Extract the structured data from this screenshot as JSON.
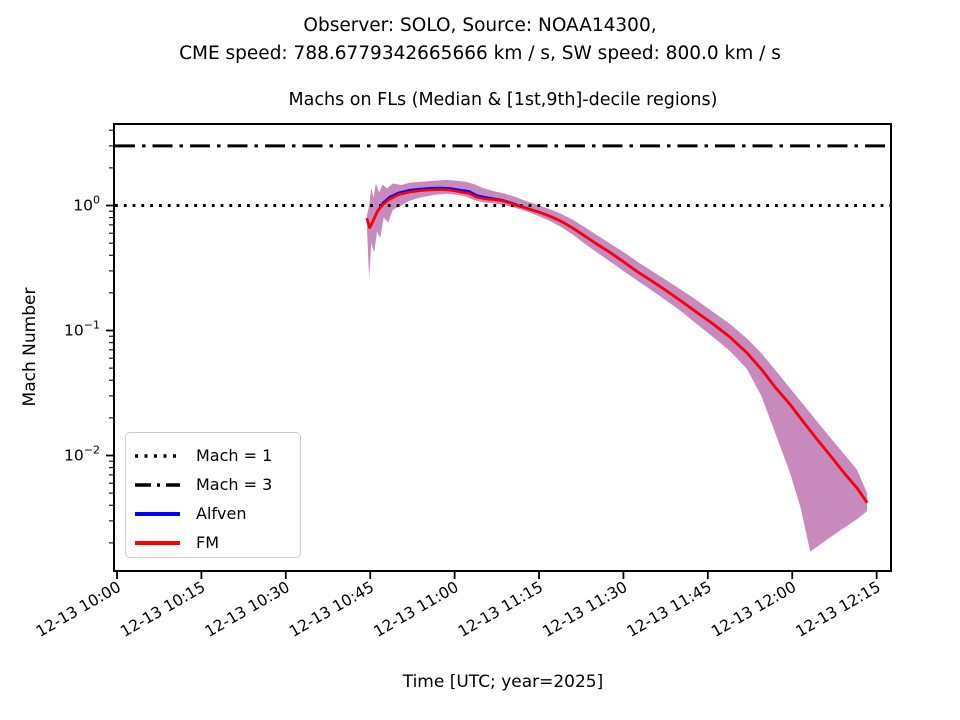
{
  "figure": {
    "suptitle_line1": "Observer: SOLO, Source: NOAA14300,",
    "suptitle_line2": "CME speed: 788.6779342665666 km / s, SW speed: 800.0 km / s",
    "axes_title": "Machs on FLs (Median & [1st,9th]-decile regions)",
    "xlabel": "Time [UTC; year=2025]",
    "ylabel": "Mach Number"
  },
  "legend": {
    "items": [
      {
        "label": "Mach = 1",
        "style": "dotted",
        "color": "#000000"
      },
      {
        "label": "Mach = 3",
        "style": "dashdot",
        "color": "#000000"
      },
      {
        "label": "Alfven",
        "style": "solid",
        "color": "#0000ff"
      },
      {
        "label": "FM",
        "style": "solid",
        "color": "#ff0000"
      }
    ]
  },
  "colors": {
    "fm_line": "#ff0000",
    "alfven_line": "#0000ff",
    "decile_band": "#c88abc",
    "reference_lines": "#000000",
    "axes": "#000000",
    "background": "#ffffff"
  },
  "chart_data": {
    "type": "line",
    "title": "Machs on FLs (Median & [1st,9th]-decile regions)",
    "xlabel": "Time [UTC; year=2025]",
    "ylabel": "Mach Number",
    "y_scale": "log",
    "grid": false,
    "legend_position": "lower left",
    "x_unit": "minutes since 12-13 10:00 UTC",
    "x_tick_minutes": [
      0,
      15,
      30,
      45,
      60,
      75,
      90,
      105,
      120,
      135
    ],
    "x_tick_labels": [
      "12-13 10:00",
      "12-13 10:15",
      "12-13 10:30",
      "12-13 10:45",
      "12-13 11:00",
      "12-13 11:15",
      "12-13 11:30",
      "12-13 11:45",
      "12-13 12:00",
      "12-13 12:15"
    ],
    "y_ticks": [
      {
        "value": 1,
        "base": "10",
        "exp": "0"
      },
      {
        "value": 0.1,
        "base": "10",
        "exp": "−1"
      },
      {
        "value": 0.01,
        "base": "10",
        "exp": "−2"
      }
    ],
    "ylim": [
      0.00119,
      4.49
    ],
    "reference_lines": [
      {
        "label": "Mach = 1",
        "value": 1,
        "style": "dotted"
      },
      {
        "label": "Mach = 3",
        "value": 3,
        "style": "dashdot"
      }
    ],
    "series": [
      {
        "name": "Alfven",
        "color": "#0000ff",
        "points": [
          [
            44.4,
            0.79
          ],
          [
            44.9,
            0.665
          ],
          [
            45.5,
            0.75
          ],
          [
            46.3,
            0.9
          ],
          [
            47.3,
            1.05
          ],
          [
            48.5,
            1.17
          ],
          [
            50,
            1.26
          ],
          [
            52,
            1.325
          ],
          [
            54,
            1.355
          ],
          [
            56,
            1.375
          ],
          [
            57.5,
            1.38
          ],
          [
            59,
            1.37
          ],
          [
            60.5,
            1.34
          ],
          [
            61.5,
            1.315
          ],
          [
            62.5,
            1.3
          ],
          [
            64,
            1.2
          ],
          [
            65.5,
            1.16
          ],
          [
            67,
            1.13
          ],
          [
            68.5,
            1.1
          ],
          [
            70,
            1.05
          ],
          [
            71.5,
            0.99
          ],
          [
            73,
            0.945
          ],
          [
            75,
            0.885
          ],
          [
            77,
            0.82
          ],
          [
            79,
            0.745
          ],
          [
            81,
            0.66
          ],
          [
            83,
            0.575
          ],
          [
            85,
            0.5
          ],
          [
            87.5,
            0.425
          ],
          [
            90,
            0.355
          ],
          [
            92.5,
            0.295
          ],
          [
            95,
            0.25
          ],
          [
            97.5,
            0.21
          ],
          [
            100,
            0.175
          ],
          [
            103,
            0.14
          ],
          [
            106,
            0.112
          ],
          [
            109,
            0.088
          ],
          [
            112,
            0.066
          ],
          [
            114.5,
            0.049
          ],
          [
            117,
            0.035
          ],
          [
            119.5,
            0.026
          ],
          [
            122,
            0.0185
          ],
          [
            124.5,
            0.0133
          ],
          [
            127,
            0.0097
          ],
          [
            129.5,
            0.007
          ],
          [
            131.5,
            0.0055
          ],
          [
            133.3,
            0.0042
          ]
        ]
      },
      {
        "name": "FM",
        "color": "#ff0000",
        "points": [
          [
            44.4,
            0.79
          ],
          [
            44.9,
            0.665
          ],
          [
            45.5,
            0.75
          ],
          [
            46.3,
            0.9
          ],
          [
            47.3,
            1.02
          ],
          [
            48.5,
            1.13
          ],
          [
            50,
            1.22
          ],
          [
            52,
            1.28
          ],
          [
            54,
            1.315
          ],
          [
            56,
            1.335
          ],
          [
            57.5,
            1.34
          ],
          [
            59,
            1.33
          ],
          [
            60.5,
            1.3
          ],
          [
            61.5,
            1.27
          ],
          [
            62.5,
            1.255
          ],
          [
            64,
            1.16
          ],
          [
            65.5,
            1.13
          ],
          [
            67,
            1.115
          ],
          [
            68.5,
            1.09
          ],
          [
            70,
            1.04
          ],
          [
            71.5,
            0.985
          ],
          [
            73,
            0.945
          ],
          [
            75,
            0.885
          ],
          [
            77,
            0.82
          ],
          [
            79,
            0.745
          ],
          [
            81,
            0.66
          ],
          [
            83,
            0.575
          ],
          [
            85,
            0.5
          ],
          [
            87.5,
            0.425
          ],
          [
            90,
            0.355
          ],
          [
            92.5,
            0.295
          ],
          [
            95,
            0.25
          ],
          [
            97.5,
            0.21
          ],
          [
            100,
            0.175
          ],
          [
            103,
            0.14
          ],
          [
            106,
            0.112
          ],
          [
            109,
            0.088
          ],
          [
            112,
            0.066
          ],
          [
            114.5,
            0.049
          ],
          [
            117,
            0.035
          ],
          [
            119.5,
            0.026
          ],
          [
            122,
            0.0185
          ],
          [
            124.5,
            0.0133
          ],
          [
            127,
            0.0097
          ],
          [
            129.5,
            0.007
          ],
          [
            131.5,
            0.0055
          ],
          [
            133.3,
            0.0042
          ]
        ]
      }
    ],
    "band": {
      "name": "1st-9th decile region",
      "color": "#c88abc",
      "upper": [
        [
          44.4,
          0.82
        ],
        [
          44.8,
          1.0
        ],
        [
          45.2,
          1.38
        ],
        [
          45.6,
          1.15
        ],
        [
          46,
          1.5
        ],
        [
          46.6,
          1.27
        ],
        [
          47.2,
          1.47
        ],
        [
          48,
          1.37
        ],
        [
          49,
          1.5
        ],
        [
          50.5,
          1.46
        ],
        [
          52,
          1.52
        ],
        [
          54,
          1.55
        ],
        [
          56.5,
          1.58
        ],
        [
          58.5,
          1.6
        ],
        [
          60.5,
          1.58
        ],
        [
          62,
          1.55
        ],
        [
          63.5,
          1.48
        ],
        [
          65,
          1.38
        ],
        [
          67,
          1.3
        ],
        [
          69,
          1.24
        ],
        [
          71,
          1.16
        ],
        [
          73,
          1.075
        ],
        [
          75,
          1.0
        ],
        [
          77,
          0.93
        ],
        [
          79,
          0.855
        ],
        [
          81,
          0.77
        ],
        [
          83,
          0.675
        ],
        [
          85,
          0.59
        ],
        [
          87.5,
          0.5
        ],
        [
          90,
          0.425
        ],
        [
          92.5,
          0.355
        ],
        [
          95,
          0.3
        ],
        [
          97.5,
          0.255
        ],
        [
          100,
          0.215
        ],
        [
          103,
          0.175
        ],
        [
          106,
          0.14
        ],
        [
          109,
          0.112
        ],
        [
          112,
          0.086
        ],
        [
          114.5,
          0.066
        ],
        [
          117,
          0.048
        ],
        [
          119.5,
          0.035
        ],
        [
          122,
          0.0255
        ],
        [
          124.5,
          0.0185
        ],
        [
          127,
          0.0135
        ],
        [
          129.5,
          0.0099
        ],
        [
          131.5,
          0.0077
        ],
        [
          133.3,
          0.005
        ]
      ],
      "lower": [
        [
          44.4,
          0.72
        ],
        [
          44.8,
          0.26
        ],
        [
          45.2,
          0.5
        ],
        [
          45.7,
          0.42
        ],
        [
          46.2,
          0.62
        ],
        [
          46.8,
          0.55
        ],
        [
          47.4,
          0.8
        ],
        [
          48.2,
          0.73
        ],
        [
          49,
          0.92
        ],
        [
          50.5,
          1.0
        ],
        [
          52,
          1.09
        ],
        [
          54,
          1.16
        ],
        [
          56.5,
          1.22
        ],
        [
          58.5,
          1.24
        ],
        [
          60.5,
          1.22
        ],
        [
          62,
          1.18
        ],
        [
          63.5,
          1.1
        ],
        [
          65,
          1.06
        ],
        [
          67,
          1.04
        ],
        [
          69,
          1.0
        ],
        [
          71,
          0.95
        ],
        [
          73,
          0.89
        ],
        [
          75,
          0.82
        ],
        [
          77,
          0.75
        ],
        [
          79,
          0.67
        ],
        [
          81,
          0.585
        ],
        [
          83,
          0.5
        ],
        [
          85,
          0.43
        ],
        [
          87.5,
          0.36
        ],
        [
          90,
          0.3
        ],
        [
          92.5,
          0.25
        ],
        [
          95,
          0.21
        ],
        [
          97.5,
          0.175
        ],
        [
          100,
          0.145
        ],
        [
          103,
          0.113
        ],
        [
          106,
          0.088
        ],
        [
          109,
          0.068
        ],
        [
          112,
          0.049
        ],
        [
          114.5,
          0.03
        ],
        [
          117,
          0.015
        ],
        [
          119.5,
          0.0075
        ],
        [
          121.5,
          0.0038
        ],
        [
          123.2,
          0.0017
        ],
        [
          126,
          0.0021
        ],
        [
          129,
          0.0026
        ],
        [
          131.5,
          0.0031
        ],
        [
          133.3,
          0.0036
        ]
      ]
    }
  }
}
